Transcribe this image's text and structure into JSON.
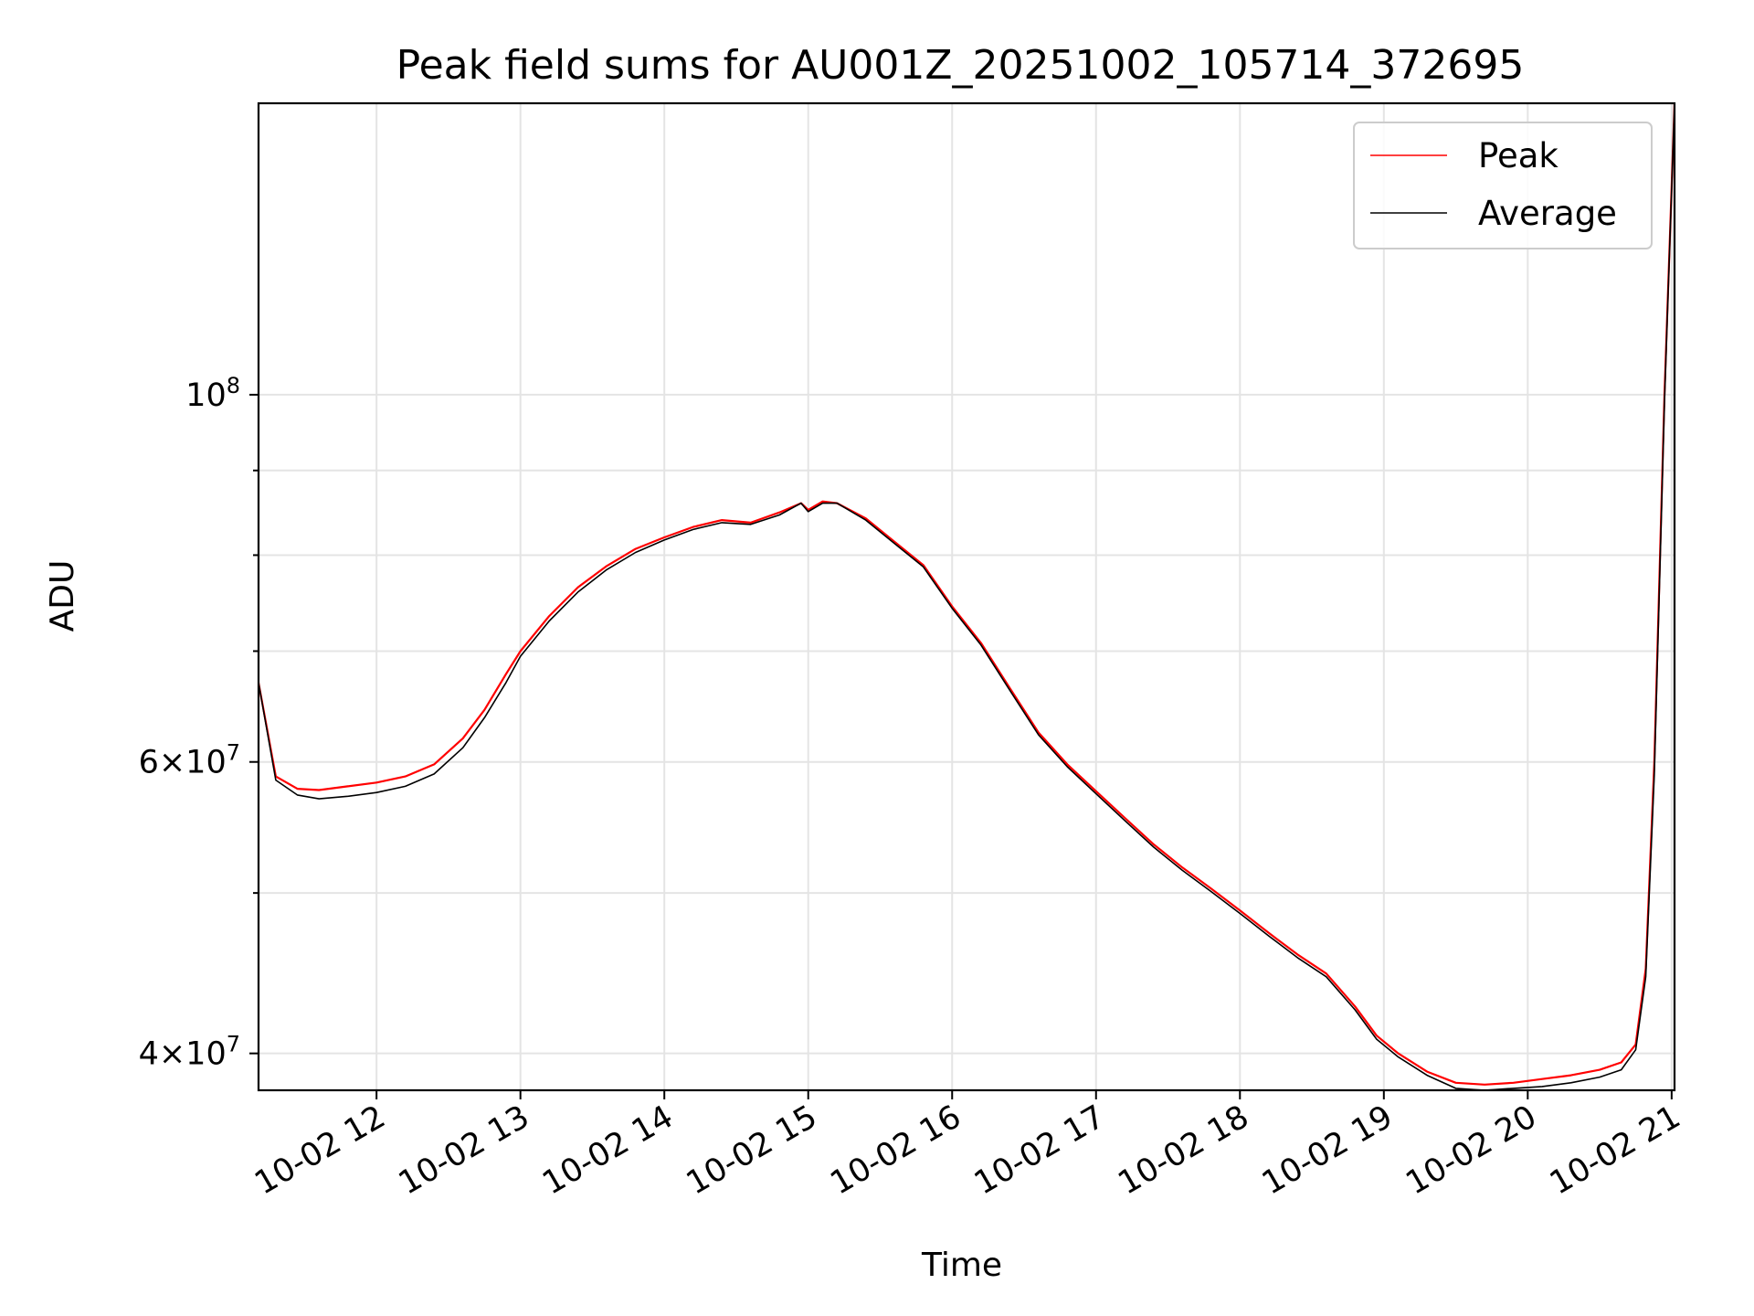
{
  "chart_data": {
    "type": "line",
    "title": "Peak field sums for AU001Z_20251002_105714_372695",
    "xlabel": "Time",
    "ylabel": "ADU",
    "x_unit": "hours (2025-10-02, local clock)",
    "xlim": [
      11.18,
      21.02
    ],
    "ylim": [
      38000000,
      150000000
    ],
    "yscale": "log",
    "grid": true,
    "legend": "top-right",
    "x_ticks": [
      {
        "value": 12,
        "label": "10-02 12"
      },
      {
        "value": 13,
        "label": "10-02 13"
      },
      {
        "value": 14,
        "label": "10-02 14"
      },
      {
        "value": 15,
        "label": "10-02 15"
      },
      {
        "value": 16,
        "label": "10-02 16"
      },
      {
        "value": 17,
        "label": "10-02 17"
      },
      {
        "value": 18,
        "label": "10-02 18"
      },
      {
        "value": 19,
        "label": "10-02 19"
      },
      {
        "value": 20,
        "label": "10-02 20"
      },
      {
        "value": 21,
        "label": "10-02 21"
      }
    ],
    "y_major_ticks": [
      {
        "value": 40000000,
        "base": "4",
        "exp": "7"
      },
      {
        "value": 60000000,
        "base": "6",
        "exp": "7"
      },
      {
        "value": 100000000,
        "base": "",
        "exp": "8"
      }
    ],
    "y_minor_ticks": [
      50000000,
      70000000,
      80000000,
      90000000
    ],
    "x": [
      11.18,
      11.3,
      11.45,
      11.6,
      11.8,
      12.0,
      12.2,
      12.4,
      12.6,
      12.75,
      12.9,
      13.0,
      13.2,
      13.4,
      13.6,
      13.8,
      14.0,
      14.2,
      14.4,
      14.6,
      14.8,
      14.95,
      15.0,
      15.1,
      15.2,
      15.4,
      15.6,
      15.8,
      16.0,
      16.2,
      16.4,
      16.6,
      16.8,
      17.0,
      17.2,
      17.4,
      17.6,
      17.8,
      18.0,
      18.2,
      18.4,
      18.6,
      18.8,
      18.95,
      19.1,
      19.3,
      19.5,
      19.7,
      19.9,
      20.1,
      20.3,
      20.5,
      20.65,
      20.75,
      20.82,
      20.88,
      20.95,
      21.02
    ],
    "series": [
      {
        "name": "Peak",
        "color": "#ff0000",
        "values": [
          67000000,
          58800000,
          57800000,
          57700000,
          58000000,
          58300000,
          58800000,
          59800000,
          62000000,
          64500000,
          67800000,
          70000000,
          73500000,
          76500000,
          78800000,
          80700000,
          82000000,
          83200000,
          84000000,
          83700000,
          84900000,
          86000000,
          85200000,
          86200000,
          86000000,
          84200000,
          81500000,
          78900000,
          74500000,
          70800000,
          66500000,
          62500000,
          59800000,
          57600000,
          55500000,
          53500000,
          51800000,
          50300000,
          48800000,
          47300000,
          45900000,
          44700000,
          42700000,
          41000000,
          40000000,
          39000000,
          38400000,
          38300000,
          38400000,
          38600000,
          38800000,
          39100000,
          39500000,
          40500000,
          45000000,
          60000000,
          100000000,
          150000000
        ]
      },
      {
        "name": "Average",
        "color": "#000000",
        "values": [
          67000000,
          58500000,
          57300000,
          57000000,
          57200000,
          57500000,
          58000000,
          59000000,
          61200000,
          63800000,
          67000000,
          69500000,
          73000000,
          76000000,
          78400000,
          80300000,
          81700000,
          82900000,
          83700000,
          83500000,
          84600000,
          86000000,
          85000000,
          86000000,
          86000000,
          84000000,
          81300000,
          78700000,
          74300000,
          70600000,
          66300000,
          62300000,
          59600000,
          57400000,
          55300000,
          53300000,
          51600000,
          50100000,
          48600000,
          47100000,
          45700000,
          44500000,
          42500000,
          40800000,
          39800000,
          38800000,
          38100000,
          38000000,
          38100000,
          38200000,
          38400000,
          38700000,
          39100000,
          40200000,
          44500000,
          59000000,
          99000000,
          150000000
        ]
      }
    ]
  }
}
